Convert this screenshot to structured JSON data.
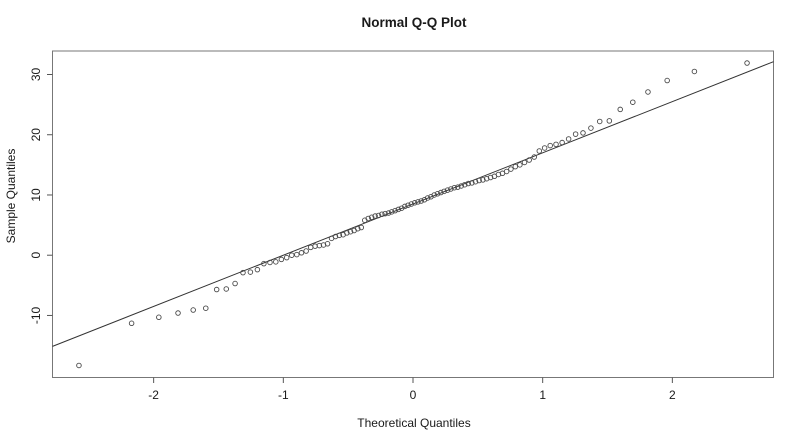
{
  "figure": {
    "title": "Normal Q-Q Plot",
    "xlabel": "Theoretical Quantiles",
    "ylabel": "Sample Quantiles"
  },
  "chart_data": {
    "type": "scatter",
    "title": "Normal Q-Q Plot",
    "xlabel": "Theoretical Quantiles",
    "ylabel": "Sample Quantiles",
    "xlim": [
      -2.78,
      2.78
    ],
    "ylim": [
      -20.3,
      33.9
    ],
    "x_ticks": [
      -2,
      -1,
      0,
      1,
      2
    ],
    "y_ticks": [
      -10,
      0,
      10,
      20,
      30
    ],
    "grid": false,
    "legend": "none",
    "n_points": 100,
    "points": {
      "theoretical": [
        -2.576,
        -2.17,
        -1.96,
        -1.812,
        -1.695,
        -1.598,
        -1.514,
        -1.44,
        -1.372,
        -1.311,
        -1.254,
        -1.2,
        -1.15,
        -1.103,
        -1.058,
        -1.015,
        -0.974,
        -0.935,
        -0.896,
        -0.86,
        -0.824,
        -0.789,
        -0.755,
        -0.722,
        -0.69,
        -0.659,
        -0.628,
        -0.598,
        -0.568,
        -0.539,
        -0.51,
        -0.482,
        -0.454,
        -0.426,
        -0.399,
        -0.372,
        -0.345,
        -0.319,
        -0.292,
        -0.266,
        -0.24,
        -0.215,
        -0.189,
        -0.164,
        -0.138,
        -0.113,
        -0.088,
        -0.063,
        -0.038,
        -0.013,
        0.013,
        0.038,
        0.063,
        0.088,
        0.113,
        0.138,
        0.164,
        0.189,
        0.215,
        0.24,
        0.266,
        0.292,
        0.319,
        0.345,
        0.372,
        0.399,
        0.426,
        0.454,
        0.482,
        0.51,
        0.539,
        0.568,
        0.598,
        0.628,
        0.659,
        0.69,
        0.722,
        0.755,
        0.789,
        0.824,
        0.86,
        0.896,
        0.935,
        0.974,
        1.015,
        1.058,
        1.103,
        1.15,
        1.2,
        1.254,
        1.311,
        1.372,
        1.44,
        1.514,
        1.598,
        1.695,
        1.812,
        1.96,
        2.17,
        2.576
      ],
      "sample": [
        -18.3,
        -11.3,
        -10.3,
        -9.6,
        -9.1,
        -8.8,
        -5.7,
        -5.6,
        -4.7,
        -2.9,
        -2.8,
        -2.4,
        -1.4,
        -1.2,
        -1.1,
        -0.7,
        -0.4,
        0.0,
        0.1,
        0.4,
        0.7,
        1.3,
        1.5,
        1.6,
        1.7,
        1.9,
        2.8,
        3.1,
        3.3,
        3.4,
        3.7,
        3.9,
        4.1,
        4.4,
        4.6,
        5.8,
        6.1,
        6.3,
        6.5,
        6.6,
        6.8,
        6.9,
        7.0,
        7.2,
        7.4,
        7.6,
        7.8,
        8.1,
        8.3,
        8.5,
        8.7,
        8.85,
        9.0,
        9.2,
        9.5,
        9.7,
        10.0,
        10.2,
        10.4,
        10.6,
        10.8,
        11.0,
        11.2,
        11.3,
        11.5,
        11.7,
        11.9,
        12.0,
        12.2,
        12.4,
        12.5,
        12.7,
        12.9,
        13.1,
        13.4,
        13.6,
        13.9,
        14.3,
        14.7,
        15.0,
        15.4,
        15.8,
        16.3,
        17.3,
        17.8,
        18.2,
        18.4,
        18.7,
        19.3,
        20.1,
        20.3,
        21.1,
        22.2,
        22.3,
        24.2,
        25.4,
        27.1,
        29.0,
        30.5,
        31.9
      ]
    },
    "reference_line": {
      "slope": 8.5,
      "intercept": 8.5,
      "x_start": -2.78,
      "x_end": 2.78
    },
    "colors": {
      "background": "#ffffff",
      "point_stroke": "#4a4a4a",
      "line": "#333333",
      "box": "#777777",
      "tick": "#555555",
      "text": "#1a1a1a"
    }
  }
}
